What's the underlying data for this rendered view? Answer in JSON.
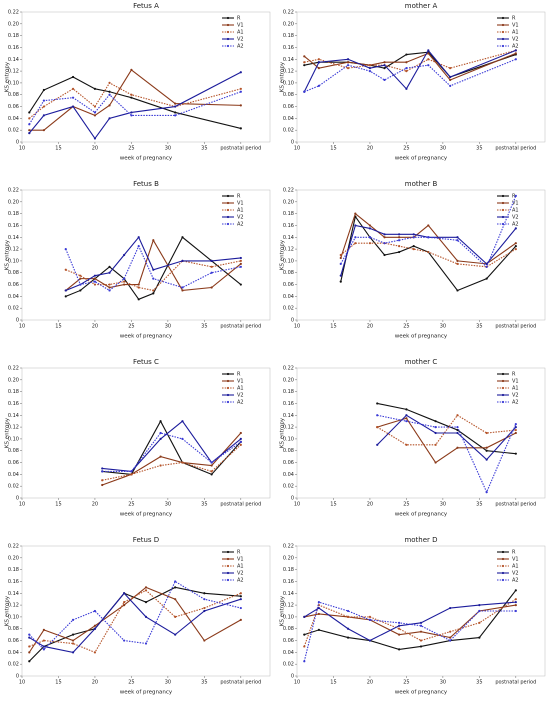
{
  "chart_data": [
    {
      "type": "line",
      "title": "Fetus A",
      "x_label": "week of pregnancy",
      "y_label": "KS entropy",
      "legend": "upper right",
      "x": [
        11,
        13,
        17,
        20,
        22,
        25,
        31,
        40
      ],
      "series": [
        {
          "name": "R",
          "color": "#111111",
          "style": "solid",
          "values": [
            0.05,
            0.088,
            0.11,
            0.09,
            0.085,
            0.075,
            0.05,
            0.023
          ]
        },
        {
          "name": "V1",
          "color": "#8b3a1a",
          "style": "solid",
          "values": [
            0.02,
            0.02,
            0.06,
            0.045,
            0.062,
            0.122,
            0.065,
            0.062
          ]
        },
        {
          "name": "A1",
          "color": "#b5542a",
          "style": "dotted",
          "values": [
            0.04,
            0.06,
            0.09,
            0.06,
            0.1,
            0.08,
            0.06,
            0.09
          ]
        },
        {
          "name": "V2",
          "color": "#1c1c9c",
          "style": "solid",
          "values": [
            0.015,
            0.045,
            0.06,
            0.006,
            0.04,
            0.05,
            0.06,
            0.118
          ]
        },
        {
          "name": "A2",
          "color": "#3a3ad6",
          "style": "dotted",
          "values": [
            0.03,
            0.07,
            0.075,
            0.05,
            0.08,
            0.045,
            0.045,
            0.085
          ]
        }
      ],
      "xlim": [
        10,
        44
      ],
      "xticks": [
        10,
        15,
        20,
        25,
        30,
        35,
        {
          "value": 40,
          "label": "postnatal period"
        }
      ],
      "ylim": [
        0,
        0.22
      ],
      "yticks": [
        0,
        0.02,
        0.04,
        0.06,
        0.08,
        {
          "value": 0.1,
          "label": "0.10"
        },
        0.12,
        0.14,
        0.16,
        0.18,
        {
          "value": 0.2,
          "label": "0.20"
        },
        0.22
      ]
    },
    {
      "type": "line",
      "title": "mother A",
      "x_label": "week of pregnancy",
      "y_label": "KS entropy",
      "legend": "upper right",
      "x": [
        11,
        13,
        17,
        20,
        22,
        25,
        28,
        31,
        40
      ],
      "series": [
        {
          "name": "R",
          "color": "#111111",
          "style": "solid",
          "values": [
            0.13,
            0.135,
            0.135,
            0.13,
            0.125,
            0.148,
            0.152,
            0.11,
            0.148
          ]
        },
        {
          "name": "V1",
          "color": "#8b3a1a",
          "style": "solid",
          "values": [
            0.145,
            0.125,
            0.135,
            0.13,
            0.135,
            0.135,
            0.15,
            0.105,
            0.15
          ]
        },
        {
          "name": "A1",
          "color": "#b5542a",
          "style": "dotted",
          "values": [
            0.135,
            0.14,
            0.125,
            0.13,
            0.13,
            0.12,
            0.14,
            0.125,
            0.155
          ]
        },
        {
          "name": "V2",
          "color": "#1c1c9c",
          "style": "solid",
          "values": [
            0.085,
            0.135,
            0.14,
            0.125,
            0.13,
            0.09,
            0.155,
            0.11,
            0.155
          ]
        },
        {
          "name": "A2",
          "color": "#3a3ad6",
          "style": "dotted",
          "values": [
            0.085,
            0.095,
            0.13,
            0.12,
            0.105,
            0.125,
            0.13,
            0.095,
            0.14
          ]
        }
      ],
      "xlim": [
        10,
        44
      ],
      "xticks": [
        10,
        15,
        20,
        25,
        30,
        35,
        {
          "value": 40,
          "label": "postnatal period"
        }
      ],
      "ylim": [
        0,
        0.22
      ],
      "yticks": [
        0,
        0.02,
        0.04,
        0.06,
        0.08,
        {
          "value": 0.1,
          "label": "0.10"
        },
        0.12,
        0.14,
        0.16,
        0.18,
        {
          "value": 0.2,
          "label": "0.20"
        },
        0.22
      ]
    },
    {
      "type": "line",
      "title": "Fetus B",
      "x_label": "week of pregnancy",
      "y_label": "KS entropy",
      "legend": "upper right",
      "x": [
        16,
        18,
        20,
        22,
        24,
        26,
        28,
        32,
        36,
        40
      ],
      "series": [
        {
          "name": "R",
          "color": "#111111",
          "style": "solid",
          "values": [
            0.04,
            0.05,
            0.07,
            0.09,
            0.07,
            0.035,
            0.045,
            0.14,
            0.1,
            0.06
          ]
        },
        {
          "name": "V1",
          "color": "#8b3a1a",
          "style": "solid",
          "values": [
            0.05,
            0.07,
            0.07,
            0.055,
            0.06,
            0.06,
            0.135,
            0.05,
            0.055,
            0.095
          ]
        },
        {
          "name": "A1",
          "color": "#b5542a",
          "style": "dotted",
          "values": [
            0.085,
            0.075,
            0.06,
            0.06,
            0.065,
            0.055,
            0.05,
            0.1,
            0.09,
            0.1
          ]
        },
        {
          "name": "V2",
          "color": "#1c1c9c",
          "style": "solid",
          "values": [
            0.05,
            0.06,
            0.075,
            0.08,
            0.11,
            0.14,
            0.085,
            0.1,
            0.1,
            0.105
          ]
        },
        {
          "name": "A2",
          "color": "#3a3ad6",
          "style": "dotted",
          "values": [
            0.12,
            0.06,
            0.065,
            0.05,
            0.07,
            0.125,
            0.07,
            0.055,
            0.08,
            0.09
          ]
        }
      ],
      "xlim": [
        10,
        44
      ],
      "xticks": [
        10,
        15,
        20,
        25,
        30,
        35,
        {
          "value": 40,
          "label": "postnatal period"
        }
      ],
      "ylim": [
        0,
        0.22
      ],
      "yticks": [
        0,
        0.02,
        0.04,
        0.06,
        0.08,
        {
          "value": 0.1,
          "label": "0.10"
        },
        0.12,
        0.14,
        0.16,
        0.18,
        {
          "value": 0.2,
          "label": "0.20"
        },
        0.22
      ]
    },
    {
      "type": "line",
      "title": "mother B",
      "x_label": "week of pregnancy",
      "y_label": "KS entropy",
      "legend": "upper right",
      "x": [
        16,
        18,
        20,
        22,
        24,
        26,
        28,
        32,
        36,
        40
      ],
      "series": [
        {
          "name": "R",
          "color": "#111111",
          "style": "solid",
          "values": [
            0.065,
            0.175,
            0.14,
            0.11,
            0.115,
            0.125,
            0.115,
            0.05,
            0.07,
            0.125
          ]
        },
        {
          "name": "V1",
          "color": "#8b3a1a",
          "style": "solid",
          "values": [
            0.105,
            0.18,
            0.16,
            0.14,
            0.14,
            0.14,
            0.16,
            0.1,
            0.095,
            0.13
          ]
        },
        {
          "name": "A1",
          "color": "#b5542a",
          "style": "dotted",
          "values": [
            0.11,
            0.13,
            0.13,
            0.13,
            0.125,
            0.12,
            0.115,
            0.095,
            0.09,
            0.12
          ]
        },
        {
          "name": "V2",
          "color": "#1c1c9c",
          "style": "solid",
          "values": [
            0.075,
            0.16,
            0.155,
            0.145,
            0.145,
            0.145,
            0.14,
            0.14,
            0.095,
            0.155
          ]
        },
        {
          "name": "A2",
          "color": "#3a3ad6",
          "style": "dotted",
          "values": [
            0.095,
            0.14,
            0.14,
            0.13,
            0.135,
            0.14,
            0.14,
            0.135,
            0.09,
            0.21
          ]
        }
      ],
      "xlim": [
        10,
        44
      ],
      "xticks": [
        10,
        15,
        20,
        25,
        30,
        35,
        {
          "value": 40,
          "label": "postnatal period"
        }
      ],
      "ylim": [
        0,
        0.22
      ],
      "yticks": [
        0,
        0.02,
        0.04,
        0.06,
        0.08,
        {
          "value": 0.1,
          "label": "0.10"
        },
        0.12,
        0.14,
        0.16,
        0.18,
        {
          "value": 0.2,
          "label": "0.20"
        },
        0.22
      ]
    },
    {
      "type": "line",
      "title": "Fetus C",
      "x_label": "week of pregnancy",
      "y_label": "KS entropy",
      "legend": "upper right",
      "x": [
        21,
        25,
        29,
        32,
        36,
        40
      ],
      "series": [
        {
          "name": "R",
          "color": "#111111",
          "style": "solid",
          "values": [
            0.045,
            0.04,
            0.13,
            0.06,
            0.04,
            0.095
          ]
        },
        {
          "name": "V1",
          "color": "#8b3a1a",
          "style": "solid",
          "values": [
            0.022,
            0.04,
            0.07,
            0.06,
            0.055,
            0.11
          ]
        },
        {
          "name": "A1",
          "color": "#b5542a",
          "style": "dotted",
          "values": [
            0.03,
            0.04,
            0.055,
            0.06,
            0.045,
            0.09
          ]
        },
        {
          "name": "V2",
          "color": "#1c1c9c",
          "style": "solid",
          "values": [
            0.05,
            0.045,
            0.1,
            0.13,
            0.06,
            0.1
          ]
        },
        {
          "name": "A2",
          "color": "#3a3ad6",
          "style": "dotted",
          "values": [
            0.045,
            0.045,
            0.11,
            0.1,
            0.06,
            0.095
          ]
        }
      ],
      "xlim": [
        10,
        44
      ],
      "xticks": [
        10,
        15,
        20,
        25,
        30,
        35,
        {
          "value": 40,
          "label": "postnatal period"
        }
      ],
      "ylim": [
        0,
        0.22
      ],
      "yticks": [
        0,
        0.02,
        0.04,
        0.06,
        0.08,
        {
          "value": 0.1,
          "label": "0.10"
        },
        0.12,
        0.14,
        0.16,
        0.18,
        {
          "value": 0.2,
          "label": "0.20"
        },
        0.22
      ]
    },
    {
      "type": "line",
      "title": "mother C",
      "x_label": "week of pregnancy",
      "y_label": "KS entropy",
      "legend": "upper right",
      "x": [
        21,
        25,
        29,
        32,
        36,
        40
      ],
      "series": [
        {
          "name": "R",
          "color": "#111111",
          "style": "solid",
          "values": [
            0.16,
            0.15,
            0.13,
            0.115,
            0.08,
            0.075
          ]
        },
        {
          "name": "V1",
          "color": "#8b3a1a",
          "style": "solid",
          "values": [
            0.12,
            0.135,
            0.06,
            0.085,
            0.085,
            0.11
          ]
        },
        {
          "name": "A1",
          "color": "#b5542a",
          "style": "dotted",
          "values": [
            0.12,
            0.09,
            0.09,
            0.14,
            0.11,
            0.115
          ]
        },
        {
          "name": "V2",
          "color": "#1c1c9c",
          "style": "solid",
          "values": [
            0.09,
            0.14,
            0.11,
            0.11,
            0.065,
            0.12
          ]
        },
        {
          "name": "A2",
          "color": "#3a3ad6",
          "style": "dotted",
          "values": [
            0.14,
            0.13,
            0.12,
            0.12,
            0.01,
            0.125
          ]
        }
      ],
      "xlim": [
        10,
        44
      ],
      "xticks": [
        10,
        15,
        20,
        25,
        30,
        35,
        {
          "value": 40,
          "label": "postnatal period"
        }
      ],
      "ylim": [
        0,
        0.22
      ],
      "yticks": [
        0,
        0.02,
        0.04,
        0.06,
        0.08,
        {
          "value": 0.1,
          "label": "0.10"
        },
        0.12,
        0.14,
        0.16,
        0.18,
        {
          "value": 0.2,
          "label": "0.20"
        },
        0.22
      ]
    },
    {
      "type": "line",
      "title": "Fetus D",
      "x_label": "week of pregnancy",
      "y_label": "KS entropy",
      "legend": "upper right",
      "x": [
        11,
        13,
        17,
        20,
        24,
        27,
        31,
        35,
        40
      ],
      "series": [
        {
          "name": "R",
          "color": "#111111",
          "style": "solid",
          "values": [
            0.025,
            0.05,
            0.07,
            0.08,
            0.14,
            0.125,
            0.15,
            0.14,
            0.135
          ]
        },
        {
          "name": "V1",
          "color": "#8b3a1a",
          "style": "solid",
          "values": [
            0.04,
            0.078,
            0.06,
            0.085,
            0.12,
            0.15,
            0.13,
            0.06,
            0.095
          ]
        },
        {
          "name": "A1",
          "color": "#b5542a",
          "style": "dotted",
          "values": [
            0.05,
            0.06,
            0.055,
            0.04,
            0.125,
            0.145,
            0.1,
            0.115,
            0.14
          ]
        },
        {
          "name": "V2",
          "color": "#1c1c9c",
          "style": "solid",
          "values": [
            0.065,
            0.05,
            0.04,
            0.08,
            0.14,
            0.1,
            0.07,
            0.11,
            0.13
          ]
        },
        {
          "name": "A2",
          "color": "#3a3ad6",
          "style": "dotted",
          "values": [
            0.07,
            0.045,
            0.095,
            0.11,
            0.06,
            0.055,
            0.16,
            0.13,
            0.115
          ]
        }
      ],
      "xlim": [
        10,
        44
      ],
      "xticks": [
        10,
        15,
        20,
        25,
        30,
        35,
        {
          "value": 40,
          "label": "postnatal period"
        }
      ],
      "ylim": [
        0,
        0.22
      ],
      "yticks": [
        0,
        0.02,
        0.04,
        0.06,
        0.08,
        {
          "value": 0.1,
          "label": "0.10"
        },
        0.12,
        0.14,
        0.16,
        0.18,
        {
          "value": 0.2,
          "label": "0.20"
        },
        0.22
      ]
    },
    {
      "type": "line",
      "title": "mother D",
      "x_label": "week of pregnancy",
      "y_label": "KS entropy",
      "legend": "upper right",
      "x": [
        11,
        13,
        17,
        20,
        24,
        27,
        31,
        35,
        40
      ],
      "series": [
        {
          "name": "R",
          "color": "#111111",
          "style": "solid",
          "values": [
            0.07,
            0.078,
            0.065,
            0.06,
            0.045,
            0.05,
            0.06,
            0.065,
            0.145
          ]
        },
        {
          "name": "V1",
          "color": "#8b3a1a",
          "style": "solid",
          "values": [
            0.1,
            0.105,
            0.1,
            0.095,
            0.07,
            0.075,
            0.065,
            0.11,
            0.12
          ]
        },
        {
          "name": "A1",
          "color": "#b5542a",
          "style": "dotted",
          "values": [
            0.05,
            0.12,
            0.1,
            0.1,
            0.08,
            0.06,
            0.075,
            0.09,
            0.13
          ]
        },
        {
          "name": "V2",
          "color": "#1c1c9c",
          "style": "solid",
          "values": [
            0.1,
            0.115,
            0.08,
            0.06,
            0.085,
            0.09,
            0.115,
            0.12,
            0.125
          ]
        },
        {
          "name": "A2",
          "color": "#3a3ad6",
          "style": "dotted",
          "values": [
            0.025,
            0.125,
            0.11,
            0.095,
            0.09,
            0.085,
            0.06,
            0.11,
            0.11
          ]
        }
      ],
      "xlim": [
        10,
        44
      ],
      "xticks": [
        10,
        15,
        20,
        25,
        30,
        35,
        {
          "value": 40,
          "label": "postnatal period"
        }
      ],
      "ylim": [
        0,
        0.22
      ],
      "yticks": [
        0,
        0.02,
        0.04,
        0.06,
        0.08,
        {
          "value": 0.1,
          "label": "0.10"
        },
        0.12,
        0.14,
        0.16,
        0.18,
        {
          "value": 0.2,
          "label": "0.20"
        },
        0.22
      ]
    }
  ]
}
